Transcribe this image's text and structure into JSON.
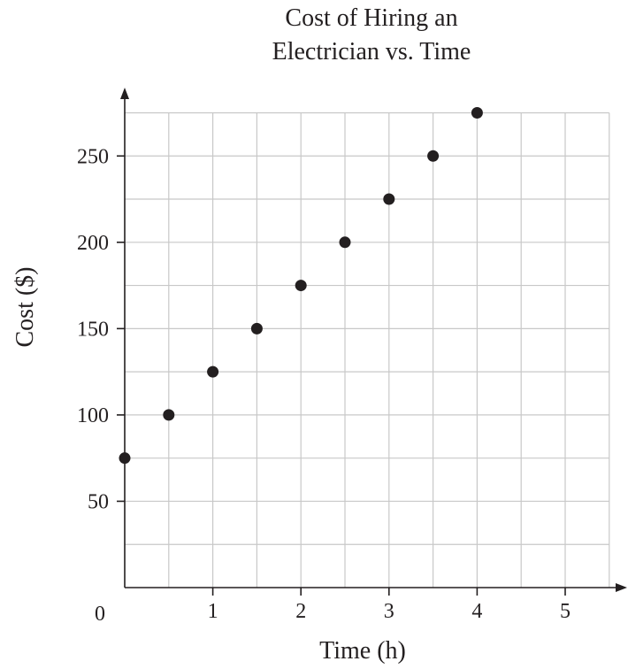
{
  "chart_data": {
    "type": "scatter",
    "title_line1": "Cost of Hiring an",
    "title_line2": "Electrician vs. Time",
    "xlabel": "Time (h)",
    "ylabel": "Cost ($)",
    "origin_label": "0",
    "xlim": [
      0,
      5.5
    ],
    "ylim": [
      0,
      275
    ],
    "grid": true,
    "x_ticks": [
      1,
      2,
      3,
      4,
      5
    ],
    "y_ticks": [
      50,
      100,
      150,
      200,
      250
    ],
    "x_tick_labels": [
      "1",
      "2",
      "3",
      "4",
      "5"
    ],
    "y_tick_labels": [
      "50",
      "100",
      "150",
      "200",
      "250"
    ],
    "x": [
      0,
      0.5,
      1,
      1.5,
      2,
      2.5,
      3,
      3.5,
      4
    ],
    "y": [
      75,
      100,
      125,
      150,
      175,
      200,
      225,
      250,
      275
    ],
    "colors": {
      "points": "#231f20",
      "grid": "#c8c8c8",
      "axis": "#231f20"
    }
  }
}
